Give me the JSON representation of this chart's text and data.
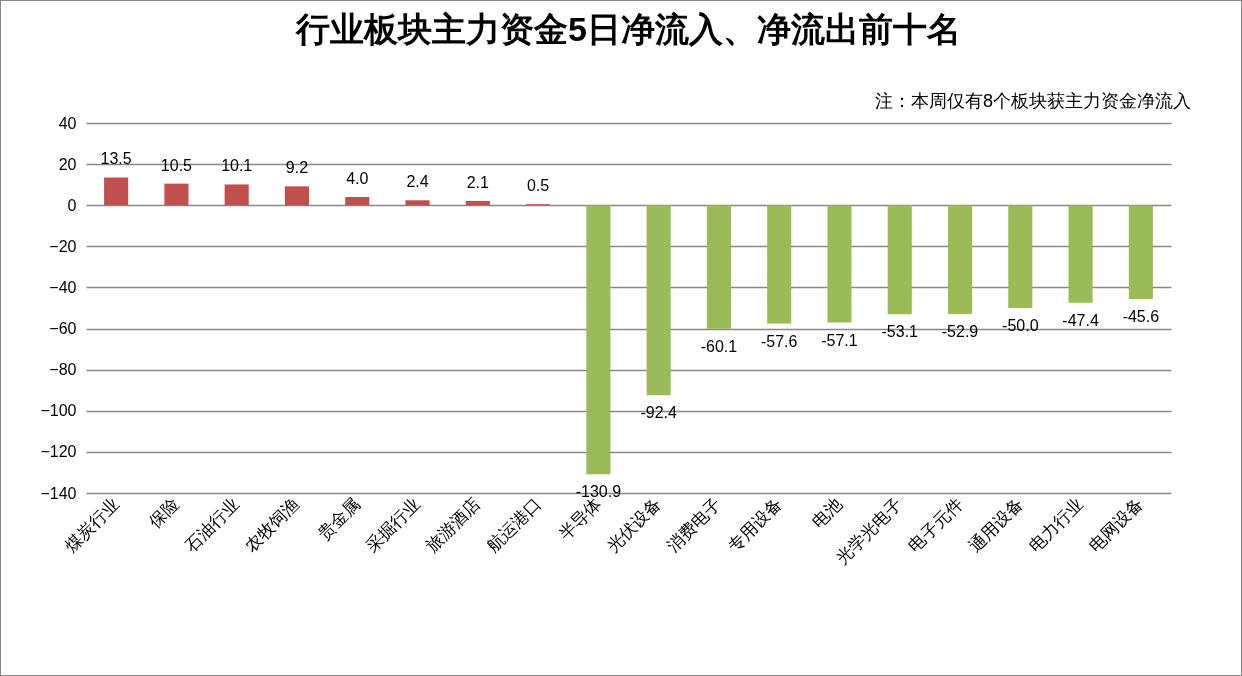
{
  "chart_data": {
    "type": "bar",
    "title": "行业板块主力资金5日净流入、净流出前十名",
    "annotations": [
      "注：本周仅有8个板块获主力资金净流入"
    ],
    "categories": [
      "煤炭行业",
      "保险",
      "石油行业",
      "农牧饲渔",
      "贵金属",
      "采掘行业",
      "旅游酒店",
      "航运港口",
      "半导体",
      "光伏设备",
      "消费电子",
      "专用设备",
      "电池",
      "光学光电子",
      "电子元件",
      "通用设备",
      "电力行业",
      "电网设备"
    ],
    "values": [
      13.5,
      10.5,
      10.1,
      9.2,
      4.0,
      2.4,
      2.1,
      0.5,
      -130.9,
      -92.4,
      -60.1,
      -57.6,
      -57.1,
      -53.1,
      -52.9,
      -50.0,
      -47.4,
      -45.6
    ],
    "value_labels": [
      "13.5",
      "10.5",
      "10.1",
      "9.2",
      "4.0",
      "2.4",
      "2.1",
      "0.5",
      "-130.9",
      "-92.4",
      "-60.1",
      "-57.6",
      "-57.1",
      "-53.1",
      "-52.9",
      "-50.0",
      "-47.4",
      "-45.6"
    ],
    "colors": [
      "#c0504d",
      "#c0504d",
      "#c0504d",
      "#c0504d",
      "#c0504d",
      "#c0504d",
      "#c0504d",
      "#c0504d",
      "#9bbb59",
      "#9bbb59",
      "#9bbb59",
      "#9bbb59",
      "#9bbb59",
      "#9bbb59",
      "#9bbb59",
      "#9bbb59",
      "#9bbb59",
      "#9bbb59"
    ],
    "ylim": [
      -140,
      40
    ],
    "yticks": [
      -140,
      -120,
      -100,
      -80,
      -60,
      -40,
      -20,
      0,
      20,
      40
    ],
    "grid": "y"
  }
}
